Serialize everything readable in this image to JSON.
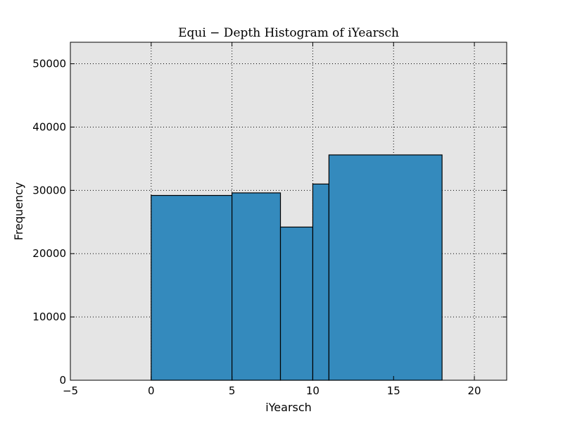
{
  "chart_data": {
    "type": "bar",
    "title": "Equi − Depth Histogram of iYearsch",
    "xlabel": "iYearsch",
    "ylabel": "Frequency",
    "xlim": [
      -5,
      22
    ],
    "ylim": [
      0,
      53400
    ],
    "grid": true,
    "bar_color": "#348abd",
    "plot_background": "#e5e5e5",
    "bins": [
      {
        "x0": 0,
        "x1": 5,
        "value": 29200
      },
      {
        "x0": 5,
        "x1": 8,
        "value": 29600
      },
      {
        "x0": 8,
        "x1": 10,
        "value": 24200
      },
      {
        "x0": 10,
        "x1": 11,
        "value": 31000
      },
      {
        "x0": 11,
        "x1": 18,
        "value": 35600
      }
    ],
    "x_ticks": [
      {
        "value": -5,
        "label": "−5"
      },
      {
        "value": 0,
        "label": "0"
      },
      {
        "value": 5,
        "label": "5"
      },
      {
        "value": 10,
        "label": "10"
      },
      {
        "value": 15,
        "label": "15"
      },
      {
        "value": 20,
        "label": "20"
      }
    ],
    "y_ticks": [
      {
        "value": 0,
        "label": "0"
      },
      {
        "value": 10000,
        "label": "10000"
      },
      {
        "value": 20000,
        "label": "20000"
      },
      {
        "value": 30000,
        "label": "30000"
      },
      {
        "value": 40000,
        "label": "40000"
      },
      {
        "value": 50000,
        "label": "50000"
      }
    ]
  }
}
